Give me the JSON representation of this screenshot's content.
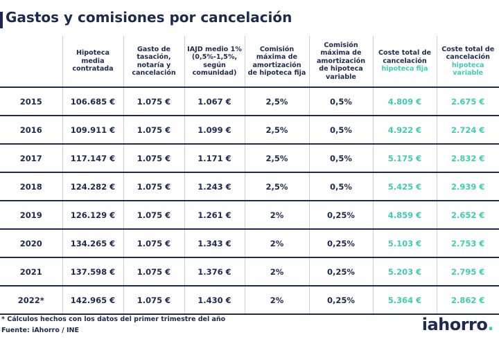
{
  "title": "Gastos y comisiones por cancelación",
  "colors": {
    "navy": "#1d2a4d",
    "accent": "#3ecdb0",
    "grid": "#c9ced8"
  },
  "chart_data": {
    "type": "table",
    "title": "Gastos y comisiones por cancelación",
    "columns": [
      {
        "label": ""
      },
      {
        "label": "Hipoteca media contratada"
      },
      {
        "label": "Gasto de tasación, notaría y cancelación"
      },
      {
        "label": "IAJD medio 1% (0,5%-1,5%, según comunidad)"
      },
      {
        "label": "Comisión máxima de amortización de hipoteca fija"
      },
      {
        "label": "Comisión máxima de amortización de hipoteca variable"
      },
      {
        "label": "Coste total de cancelación",
        "label_highlight": "hipoteca fija"
      },
      {
        "label": "Coste total de cancelación",
        "label_highlight": "hipoteca variable"
      }
    ],
    "rows": [
      [
        "2015",
        "106.685 €",
        "1.075 €",
        "1.067 €",
        "2,5%",
        "0,5%",
        "4.809 €",
        "2.675 €"
      ],
      [
        "2016",
        "109.911 €",
        "1.075 €",
        "1.099 €",
        "2,5%",
        "0,5%",
        "4.922 €",
        "2.724 €"
      ],
      [
        "2017",
        "117.147 €",
        "1.075 €",
        "1.171 €",
        "2,5%",
        "0,5%",
        "5.175 €",
        "2.832 €"
      ],
      [
        "2018",
        "124.282 €",
        "1.075 €",
        "1.243 €",
        "2,5%",
        "0,5%",
        "5.425 €",
        "2.939 €"
      ],
      [
        "2019",
        "126.129 €",
        "1.075 €",
        "1.261 €",
        "2%",
        "0,25%",
        "4.859 €",
        "2.652 €"
      ],
      [
        "2020",
        "134.265 €",
        "1.075 €",
        "1.343 €",
        "2%",
        "0,25%",
        "5.103 €",
        "2.753 €"
      ],
      [
        "2021",
        "137.598 €",
        "1.075 €",
        "1.376 €",
        "2%",
        "0,25%",
        "5.203 €",
        "2.795 €"
      ],
      [
        "2022*",
        "142.965 €",
        "1.075 €",
        "1.430 €",
        "2%",
        "0,25%",
        "5.364 €",
        "2.862 €"
      ]
    ],
    "highlight_columns": [
      6,
      7
    ]
  },
  "footnote": "* Cálculos hechos con los datos del primer trimestre del año",
  "source": "Fuente: iAhorro / INE",
  "logo": {
    "text": "iahorro",
    "dot": "."
  }
}
